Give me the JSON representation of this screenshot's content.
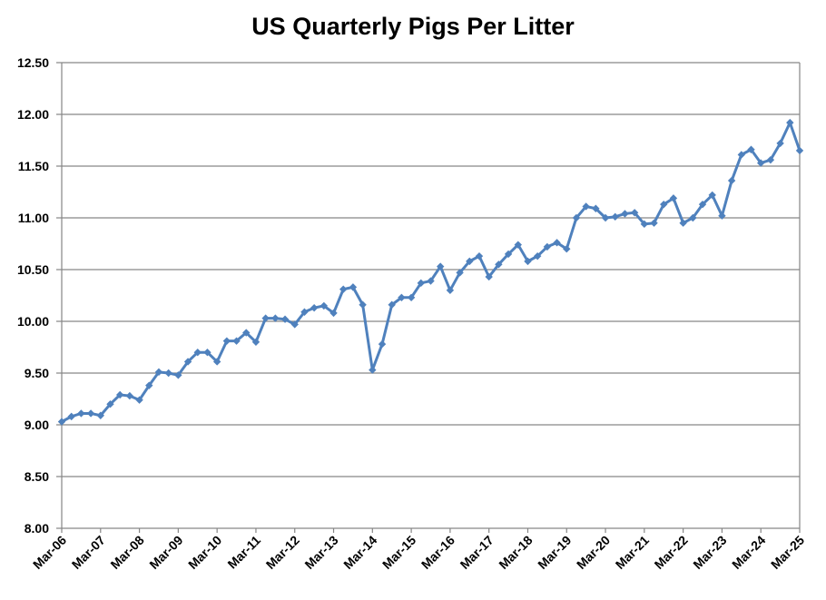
{
  "chart_data": {
    "type": "line",
    "title": "US Quarterly Pigs Per Litter",
    "xlabel": "",
    "ylabel": "",
    "ylim": [
      8.0,
      12.5
    ],
    "y_ticks": [
      "8.00",
      "8.50",
      "9.00",
      "9.50",
      "10.00",
      "10.50",
      "11.00",
      "11.50",
      "12.00",
      "12.50"
    ],
    "x_tick_labels": [
      "Mar-06",
      "Mar-07",
      "Mar-08",
      "Mar-09",
      "Mar-10",
      "Mar-11",
      "Mar-12",
      "Mar-13",
      "Mar-14",
      "Mar-15",
      "Mar-16",
      "Mar-17",
      "Mar-18",
      "Mar-19",
      "Mar-20",
      "Mar-21",
      "Mar-22",
      "Mar-23",
      "Mar-24",
      "Mar-25"
    ],
    "grid": "horizontal",
    "colors": {
      "line": "#4F81BD",
      "grid": "#868686",
      "axis": "#868686"
    },
    "series": [
      {
        "values": [
          9.03,
          9.08,
          9.11,
          9.11,
          9.09,
          9.2,
          9.29,
          9.28,
          9.24,
          9.38,
          9.51,
          9.5,
          9.48,
          9.61,
          9.7,
          9.7,
          9.61,
          9.81,
          9.81,
          9.89,
          9.8,
          10.03,
          10.03,
          10.02,
          9.97,
          10.09,
          10.13,
          10.15,
          10.08,
          10.31,
          10.33,
          10.16,
          9.53,
          9.78,
          10.16,
          10.23,
          10.23,
          10.37,
          10.39,
          10.53,
          10.3,
          10.47,
          10.58,
          10.63,
          10.43,
          10.55,
          10.65,
          10.74,
          10.58,
          10.63,
          10.72,
          10.76,
          10.7,
          11.0,
          11.11,
          11.09,
          11.0,
          11.01,
          11.04,
          11.05,
          10.94,
          10.95,
          11.13,
          11.19,
          10.95,
          11.0,
          11.13,
          11.22,
          11.02,
          11.36,
          11.61,
          11.66,
          11.53,
          11.56,
          11.72,
          11.92,
          11.65
        ]
      }
    ]
  }
}
